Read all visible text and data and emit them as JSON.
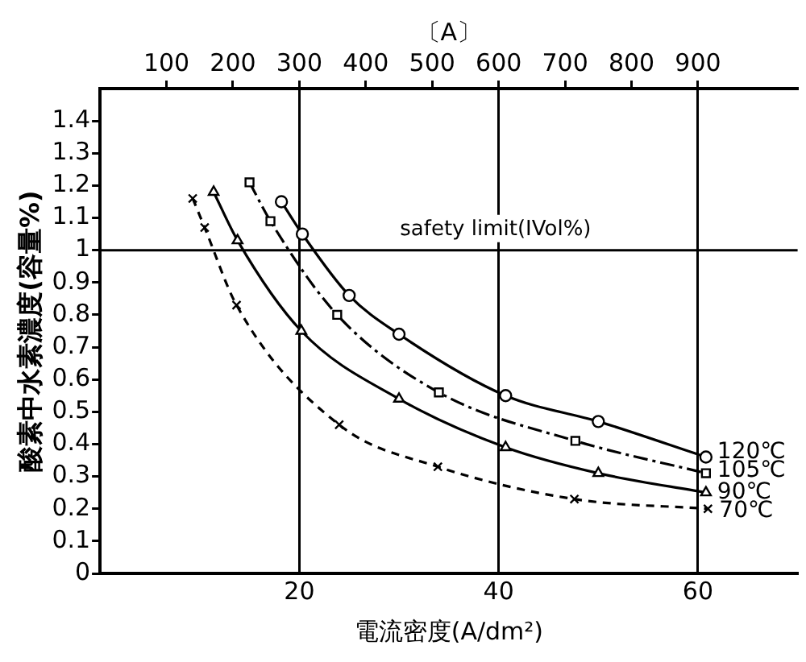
{
  "chart_data": {
    "type": "line",
    "xlabel": "電流密度(A/dm²)",
    "ylabel": "酸素中水素濃度(容量%)",
    "x2label": "〔A〕",
    "xlim": [
      0,
      70
    ],
    "xticks": [
      20,
      40,
      60
    ],
    "x2lim": [
      0,
      1050
    ],
    "x2ticks": [
      100,
      200,
      300,
      400,
      500,
      600,
      700,
      800,
      900
    ],
    "ylim": [
      0,
      1.5
    ],
    "yticks": [
      0,
      0.1,
      0.2,
      0.3,
      0.4,
      0.5,
      0.6,
      0.7,
      0.8,
      0.9,
      1.0,
      1.1,
      1.2,
      1.3,
      1.4
    ],
    "grid": "x",
    "legend": false,
    "ref_lines": [
      {
        "axis": "y",
        "value": 1.0,
        "label": "safety limit(ⅠVol%)"
      }
    ],
    "series": [
      {
        "name": "120℃",
        "color": "#000000",
        "marker": "circle",
        "line_style": "solid",
        "x": [
          18.2,
          20.3,
          25,
          30,
          40.7,
          50,
          60.8
        ],
        "values": [
          1.15,
          1.05,
          0.86,
          0.74,
          0.55,
          0.47,
          0.36
        ]
      },
      {
        "name": "105℃",
        "color": "#000000",
        "marker": "square",
        "line_style": "dashed",
        "x": [
          15.0,
          17.1,
          23.8,
          34.0,
          47.7,
          60.8
        ],
        "values": [
          1.21,
          1.09,
          0.8,
          0.56,
          0.41,
          0.31
        ]
      },
      {
        "name": "90℃",
        "color": "#000000",
        "marker": "triangle",
        "line_style": "solid",
        "x": [
          11.4,
          13.8,
          20.2,
          30,
          40.7,
          50,
          60.8
        ],
        "values": [
          1.18,
          1.03,
          0.75,
          0.54,
          0.39,
          0.31,
          0.25
        ]
      },
      {
        "name": "70℃",
        "color": "#000000",
        "marker": "cross",
        "line_style": "dotted",
        "x": [
          9.3,
          10.5,
          13.7,
          24.0,
          33.9,
          47.6,
          61.0
        ],
        "values": [
          1.16,
          1.07,
          0.83,
          0.46,
          0.33,
          0.23,
          0.2
        ]
      }
    ]
  }
}
